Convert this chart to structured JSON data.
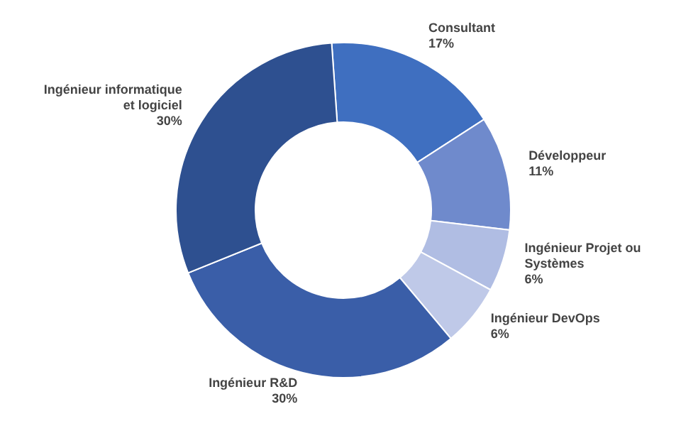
{
  "chart_data": {
    "type": "donut",
    "categories": [
      "Consultant",
      "Développeur",
      "Ingénieur Projet ou Systèmes",
      "Ingénieur DevOps",
      "Ingénieur R&D",
      "Ingénieur informatique et logiciel"
    ],
    "values": [
      17,
      11,
      6,
      6,
      30,
      30
    ],
    "value_labels": [
      "17%",
      "11%",
      "6%",
      "6%",
      "30%",
      "30%"
    ],
    "colors": [
      "#3f6fc0",
      "#6f8acc",
      "#b0bde3",
      "#bfc9e8",
      "#3a5ea8",
      "#2e5090"
    ],
    "legend": false
  }
}
